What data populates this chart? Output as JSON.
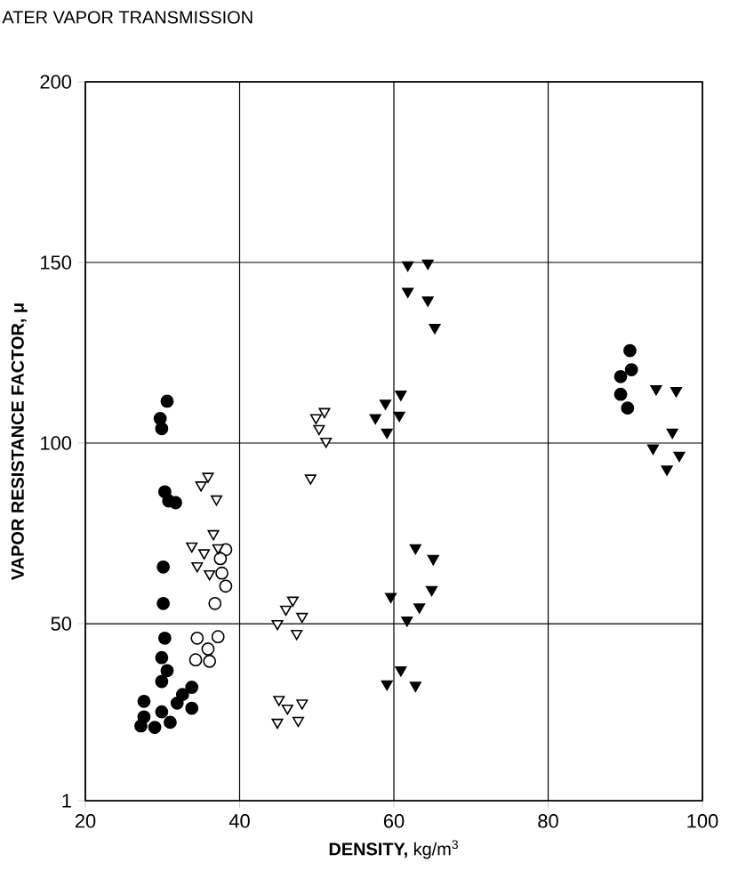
{
  "chart_data": {
    "type": "scatter",
    "title": "ATER VAPOR TRANSMISSION",
    "xlabel": "**DENSITY,** kg/m$^{3}$",
    "ylabel": "VAPOR RESISTANCE FACTOR, μ",
    "xlim": [
      20,
      100
    ],
    "ylim": [
      1,
      200
    ],
    "xticks": [
      20,
      40,
      60,
      80,
      100
    ],
    "yticks": [
      1,
      50,
      100,
      150,
      200
    ],
    "grid": true,
    "series": [
      {
        "color": "#000000",
        "marker": "circle",
        "x": [
          30.6,
          29.7,
          29.9,
          30.3,
          30.8,
          31.7,
          30.1,
          30.1,
          30.3,
          29.9,
          30.6,
          29.9,
          33.8,
          32.6,
          31.9,
          27.6,
          33.8,
          29.9,
          27.6,
          31.0,
          29.0,
          27.2,
          90.6,
          90.8,
          89.4,
          89.4,
          90.3
        ],
        "values": [
          111.6,
          106.8,
          104,
          86.5,
          84,
          83.5,
          65.7,
          55.6,
          46,
          40.6,
          37,
          34,
          32.4,
          30.4,
          28,
          28.5,
          26.6,
          25.6,
          24.2,
          22.7,
          21.3,
          21.7,
          125.6,
          120.3,
          118.4,
          113.5,
          109.7
        ]
      },
      {
        "color": "#ffffff",
        "marker": "circle",
        "x": [
          38.2,
          37.5,
          37.7,
          38.2,
          36.8,
          34.5,
          37.2,
          35.9,
          34.3,
          36.1
        ],
        "values": [
          70.5,
          68,
          64,
          60.4,
          55.6,
          46,
          46.4,
          43,
          40,
          39.6
        ]
      },
      {
        "color": "#ffffff",
        "marker": "triangle",
        "x": [
          35.9,
          35.0,
          37.0,
          36.6,
          33.8,
          35.4,
          37.2,
          34.5,
          36.1,
          51.0,
          49.9,
          50.3,
          51.2,
          49.2,
          46.9,
          46.0,
          48.1,
          44.9,
          47.4,
          45.1,
          48.1,
          46.2,
          44.9,
          47.6
        ],
        "values": [
          90.8,
          88.4,
          84.5,
          74.9,
          71.5,
          69.6,
          71,
          66,
          63.8,
          108.7,
          107,
          104,
          100.5,
          90.3,
          56.5,
          54,
          52,
          50,
          47.3,
          29,
          28,
          26.6,
          22.7,
          23.2
        ]
      },
      {
        "color": "#000000",
        "marker": "triangle",
        "x": [
          60.9,
          58.9,
          57.6,
          60.7,
          59.1,
          62.8,
          65.1,
          64.9,
          59.6,
          63.3,
          61.7,
          60.9,
          59.1,
          62.8,
          61.8,
          64.4,
          61.8,
          64.4,
          65.3,
          94.0,
          96.6,
          96.1,
          93.6,
          97.0,
          95.4
        ],
        "values": [
          113.5,
          111,
          107,
          107.7,
          103,
          71,
          68,
          59.4,
          57.5,
          54.6,
          51,
          37.2,
          33.3,
          32.9,
          149.3,
          149.8,
          142,
          139.6,
          132,
          115,
          114.5,
          103,
          98.6,
          96.6,
          92.8
        ]
      }
    ]
  }
}
